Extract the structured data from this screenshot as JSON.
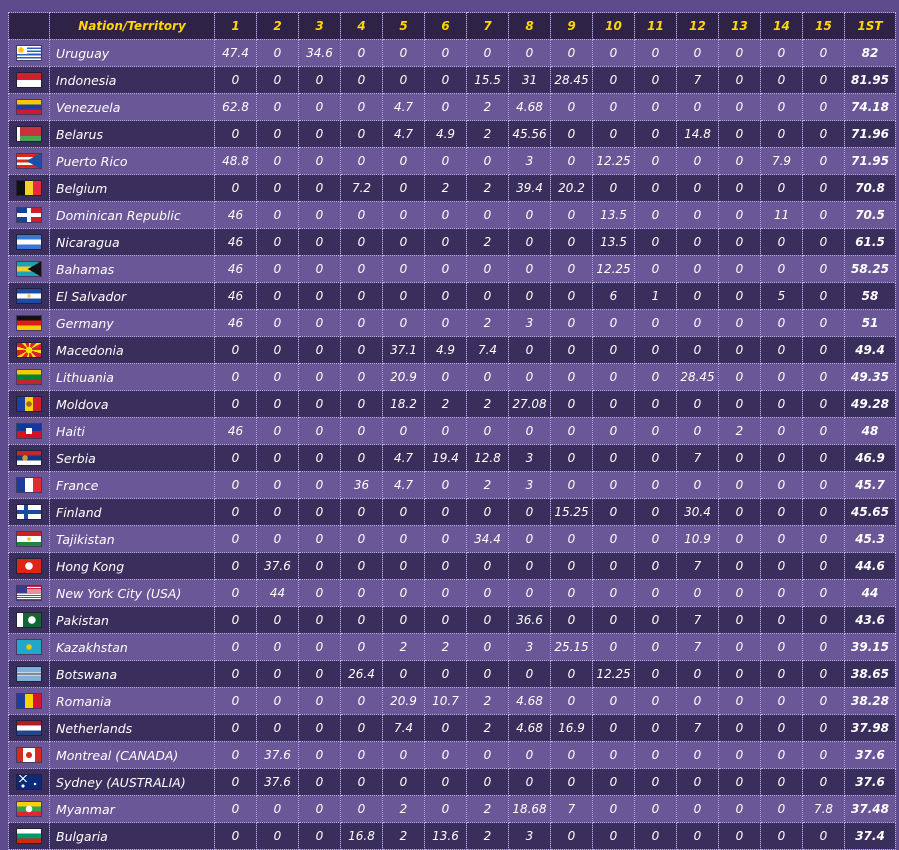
{
  "columns": {
    "nation": "Nation/Territory",
    "points": [
      "1",
      "2",
      "3",
      "4",
      "5",
      "6",
      "7",
      "8",
      "9",
      "10",
      "11",
      "12",
      "13",
      "14",
      "15"
    ],
    "total": "1ST"
  },
  "rows": [
    {
      "name": "Uruguay",
      "flag": "uruguay-flag",
      "points": [
        "47.4",
        "0",
        "34.6",
        "0",
        "0",
        "0",
        "0",
        "0",
        "0",
        "0",
        "0",
        "0",
        "0",
        "0",
        "0"
      ],
      "total": "82"
    },
    {
      "name": "Indonesia",
      "flag": "indonesia-flag",
      "points": [
        "0",
        "0",
        "0",
        "0",
        "0",
        "0",
        "15.5",
        "31",
        "28.45",
        "0",
        "0",
        "7",
        "0",
        "0",
        "0"
      ],
      "total": "81.95"
    },
    {
      "name": "Venezuela",
      "flag": "venezuela-flag",
      "points": [
        "62.8",
        "0",
        "0",
        "0",
        "4.7",
        "0",
        "2",
        "4.68",
        "0",
        "0",
        "0",
        "0",
        "0",
        "0",
        "0"
      ],
      "total": "74.18"
    },
    {
      "name": "Belarus",
      "flag": "belarus-flag",
      "points": [
        "0",
        "0",
        "0",
        "0",
        "4.7",
        "4.9",
        "2",
        "45.56",
        "0",
        "0",
        "0",
        "14.8",
        "0",
        "0",
        "0"
      ],
      "total": "71.96"
    },
    {
      "name": "Puerto Rico",
      "flag": "puerto-rico-flag",
      "points": [
        "48.8",
        "0",
        "0",
        "0",
        "0",
        "0",
        "0",
        "3",
        "0",
        "12.25",
        "0",
        "0",
        "0",
        "7.9",
        "0"
      ],
      "total": "71.95"
    },
    {
      "name": "Belgium",
      "flag": "belgium-flag",
      "points": [
        "0",
        "0",
        "0",
        "7.2",
        "0",
        "2",
        "2",
        "39.4",
        "20.2",
        "0",
        "0",
        "0",
        "0",
        "0",
        "0"
      ],
      "total": "70.8"
    },
    {
      "name": "Dominican Republic",
      "flag": "dominican-republic-flag",
      "points": [
        "46",
        "0",
        "0",
        "0",
        "0",
        "0",
        "0",
        "0",
        "0",
        "13.5",
        "0",
        "0",
        "0",
        "11",
        "0"
      ],
      "total": "70.5"
    },
    {
      "name": "Nicaragua",
      "flag": "nicaragua-flag",
      "points": [
        "46",
        "0",
        "0",
        "0",
        "0",
        "0",
        "2",
        "0",
        "0",
        "13.5",
        "0",
        "0",
        "0",
        "0",
        "0"
      ],
      "total": "61.5"
    },
    {
      "name": "Bahamas",
      "flag": "bahamas-flag",
      "points": [
        "46",
        "0",
        "0",
        "0",
        "0",
        "0",
        "0",
        "0",
        "0",
        "12.25",
        "0",
        "0",
        "0",
        "0",
        "0"
      ],
      "total": "58.25"
    },
    {
      "name": "El Salvador",
      "flag": "el-salvador-flag",
      "points": [
        "46",
        "0",
        "0",
        "0",
        "0",
        "0",
        "0",
        "0",
        "0",
        "6",
        "1",
        "0",
        "0",
        "5",
        "0"
      ],
      "total": "58"
    },
    {
      "name": "Germany",
      "flag": "germany-flag",
      "points": [
        "46",
        "0",
        "0",
        "0",
        "0",
        "0",
        "2",
        "3",
        "0",
        "0",
        "0",
        "0",
        "0",
        "0",
        "0"
      ],
      "total": "51"
    },
    {
      "name": "Macedonia",
      "flag": "macedonia-flag",
      "points": [
        "0",
        "0",
        "0",
        "0",
        "37.1",
        "4.9",
        "7.4",
        "0",
        "0",
        "0",
        "0",
        "0",
        "0",
        "0",
        "0"
      ],
      "total": "49.4"
    },
    {
      "name": "Lithuania",
      "flag": "lithuania-flag",
      "points": [
        "0",
        "0",
        "0",
        "0",
        "20.9",
        "0",
        "0",
        "0",
        "0",
        "0",
        "0",
        "28.45",
        "0",
        "0",
        "0"
      ],
      "total": "49.35"
    },
    {
      "name": "Moldova",
      "flag": "moldova-flag",
      "points": [
        "0",
        "0",
        "0",
        "0",
        "18.2",
        "2",
        "2",
        "27.08",
        "0",
        "0",
        "0",
        "0",
        "0",
        "0",
        "0"
      ],
      "total": "49.28"
    },
    {
      "name": "Haiti",
      "flag": "haiti-flag",
      "points": [
        "46",
        "0",
        "0",
        "0",
        "0",
        "0",
        "0",
        "0",
        "0",
        "0",
        "0",
        "0",
        "2",
        "0",
        "0"
      ],
      "total": "48"
    },
    {
      "name": "Serbia",
      "flag": "serbia-flag",
      "points": [
        "0",
        "0",
        "0",
        "0",
        "4.7",
        "19.4",
        "12.8",
        "3",
        "0",
        "0",
        "0",
        "7",
        "0",
        "0",
        "0"
      ],
      "total": "46.9"
    },
    {
      "name": "France",
      "flag": "france-flag",
      "points": [
        "0",
        "0",
        "0",
        "36",
        "4.7",
        "0",
        "2",
        "3",
        "0",
        "0",
        "0",
        "0",
        "0",
        "0",
        "0"
      ],
      "total": "45.7"
    },
    {
      "name": "Finland",
      "flag": "finland-flag",
      "points": [
        "0",
        "0",
        "0",
        "0",
        "0",
        "0",
        "0",
        "0",
        "15.25",
        "0",
        "0",
        "30.4",
        "0",
        "0",
        "0"
      ],
      "total": "45.65"
    },
    {
      "name": "Tajikistan",
      "flag": "tajikistan-flag",
      "points": [
        "0",
        "0",
        "0",
        "0",
        "0",
        "0",
        "34.4",
        "0",
        "0",
        "0",
        "0",
        "10.9",
        "0",
        "0",
        "0"
      ],
      "total": "45.3"
    },
    {
      "name": "Hong Kong",
      "flag": "hong-kong-flag",
      "points": [
        "0",
        "37.6",
        "0",
        "0",
        "0",
        "0",
        "0",
        "0",
        "0",
        "0",
        "0",
        "7",
        "0",
        "0",
        "0"
      ],
      "total": "44.6"
    },
    {
      "name": "New York City (USA)",
      "flag": "usa-flag",
      "points": [
        "0",
        "44",
        "0",
        "0",
        "0",
        "0",
        "0",
        "0",
        "0",
        "0",
        "0",
        "0",
        "0",
        "0",
        "0"
      ],
      "total": "44"
    },
    {
      "name": "Pakistan",
      "flag": "pakistan-flag",
      "points": [
        "0",
        "0",
        "0",
        "0",
        "0",
        "0",
        "0",
        "36.6",
        "0",
        "0",
        "0",
        "7",
        "0",
        "0",
        "0"
      ],
      "total": "43.6"
    },
    {
      "name": "Kazakhstan",
      "flag": "kazakhstan-flag",
      "points": [
        "0",
        "0",
        "0",
        "0",
        "2",
        "2",
        "0",
        "3",
        "25.15",
        "0",
        "0",
        "7",
        "0",
        "0",
        "0"
      ],
      "total": "39.15"
    },
    {
      "name": "Botswana",
      "flag": "botswana-flag",
      "points": [
        "0",
        "0",
        "0",
        "26.4",
        "0",
        "0",
        "0",
        "0",
        "0",
        "12.25",
        "0",
        "0",
        "0",
        "0",
        "0"
      ],
      "total": "38.65"
    },
    {
      "name": "Romania",
      "flag": "romania-flag",
      "points": [
        "0",
        "0",
        "0",
        "0",
        "20.9",
        "10.7",
        "2",
        "4.68",
        "0",
        "0",
        "0",
        "0",
        "0",
        "0",
        "0"
      ],
      "total": "38.28"
    },
    {
      "name": "Netherlands",
      "flag": "netherlands-flag",
      "points": [
        "0",
        "0",
        "0",
        "0",
        "7.4",
        "0",
        "2",
        "4.68",
        "16.9",
        "0",
        "0",
        "7",
        "0",
        "0",
        "0"
      ],
      "total": "37.98"
    },
    {
      "name": "Montreal (CANADA)",
      "flag": "canada-flag",
      "points": [
        "0",
        "37.6",
        "0",
        "0",
        "0",
        "0",
        "0",
        "0",
        "0",
        "0",
        "0",
        "0",
        "0",
        "0",
        "0"
      ],
      "total": "37.6"
    },
    {
      "name": "Sydney (AUSTRALIA)",
      "flag": "australia-flag",
      "points": [
        "0",
        "37.6",
        "0",
        "0",
        "0",
        "0",
        "0",
        "0",
        "0",
        "0",
        "0",
        "0",
        "0",
        "0",
        "0"
      ],
      "total": "37.6"
    },
    {
      "name": "Myanmar",
      "flag": "myanmar-flag",
      "points": [
        "0",
        "0",
        "0",
        "0",
        "2",
        "0",
        "2",
        "18.68",
        "7",
        "0",
        "0",
        "0",
        "0",
        "0",
        "7.8"
      ],
      "total": "37.48"
    },
    {
      "name": "Bulgaria",
      "flag": "bulgaria-flag",
      "points": [
        "0",
        "0",
        "0",
        "16.8",
        "2",
        "13.6",
        "2",
        "3",
        "0",
        "0",
        "0",
        "0",
        "0",
        "0",
        "0"
      ],
      "total": "37.4"
    }
  ]
}
